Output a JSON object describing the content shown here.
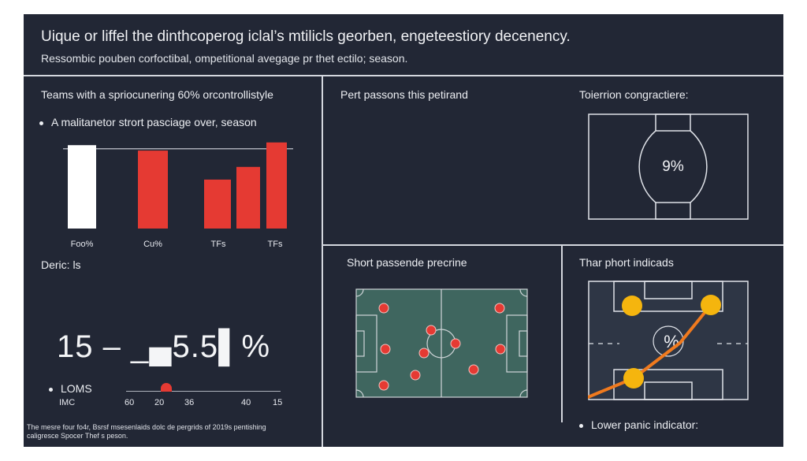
{
  "header": {
    "title": "Uique or liffel the dinthcoperog iclal’s mtilicls georben, engeteestiory decenency.",
    "subtitle": "Ressombic pouben corfoctibal, ompetitional avegage pr thet ectilo; season."
  },
  "left_panel": {
    "title": "Teams with a spriocunering 60% orcontrollistyle",
    "bullet": "A malitanetor strort pasciage over, season",
    "metric_label": "Deric: ls",
    "big_number": "15 – _▄5.5▌%",
    "legend_label": "LOMS",
    "legend_sub": "IMC",
    "scale_ticks": [
      "60",
      "20",
      "36",
      "40",
      "15"
    ],
    "footnote_line1": "The mesre four fo4r, Bsrsf msesenlaids dolc de pergrids of 2019s pentishing",
    "footnote_line2": "caligresce Spocer Thef s peson."
  },
  "chart_data": {
    "type": "bar",
    "title": "",
    "xlabel": "",
    "ylabel": "",
    "ylim": [
      0,
      100
    ],
    "reference_line": 88,
    "categories": [
      "Foo%",
      "Cu%",
      "TFs",
      "TFs"
    ],
    "bars": [
      {
        "label_index": 0,
        "value": 92,
        "color": "#ffffff"
      },
      {
        "label_index": 1,
        "value": 86,
        "color": "#e53a33"
      },
      {
        "label_index": 2,
        "value": 54,
        "color": "#e53a33"
      },
      {
        "label_index": 2,
        "value": 68,
        "color": "#e53a33"
      },
      {
        "label_index": 3,
        "value": 95,
        "color": "#e53a33"
      }
    ]
  },
  "top_middle": {
    "title": "Pert passons this petirand"
  },
  "top_right": {
    "title": "Toierrion congractiere:",
    "value": "9%"
  },
  "bottom_middle": {
    "title": "Short passende precrine",
    "pitch_color": "#3f665f",
    "marker_color": "#e53a33"
  },
  "bottom_right": {
    "title": "Thar phort indicads",
    "value": "%",
    "bullet": "Lower panic indicator:",
    "line_color": "#f07a1e",
    "node_color": "#f5b50e"
  }
}
